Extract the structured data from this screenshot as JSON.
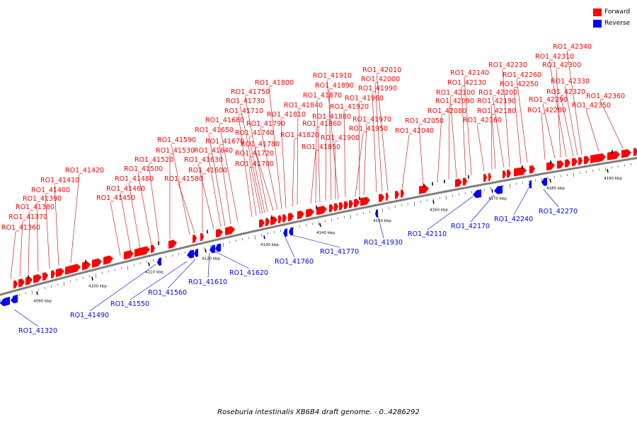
{
  "colors": {
    "forward": "#ff0000",
    "reverse": "#0000ff",
    "backbone": "#7f7f7f",
    "leader_forward": "#cc0000",
    "leader_reverse": "#0000cc"
  },
  "legend": [
    {
      "label": "Forward",
      "color": "#ff0000"
    },
    {
      "label": "Reverse",
      "color": "#0000ff"
    }
  ],
  "caption": "Roseburia intestinalis XB6B4 draft genome. - 0..4286292",
  "scale_labels": [
    "4090 kbp",
    "4100 kbp",
    "4110 kbp",
    "4120 kbp",
    "4130 kbp",
    "4140 kbp",
    "4150 kbp",
    "4160 kbp",
    "4170 kbp",
    "4180 kbp",
    "4190 kbp"
  ],
  "forward_genes": [
    "RO1_41360",
    "RO1_41370",
    "RO1_41380",
    "RO1_41390",
    "RO1_41400",
    "RO1_41410",
    "RO1_41420",
    "RO1_41450",
    "RO1_41460",
    "RO1_41480",
    "RO1_41500",
    "RO1_41520",
    "RO1_41530",
    "RO1_41580",
    "RO1_41590",
    "RO1_41600",
    "RO1_41630",
    "RO1_41640",
    "RO1_41650",
    "RO1_41670",
    "RO1_41680",
    "RO1_41700",
    "RO1_41710",
    "RO1_41720",
    "RO1_41730",
    "RO1_41740",
    "RO1_41750",
    "RO1_41780",
    "RO1_41790",
    "RO1_41800",
    "RO1_41810",
    "RO1_41820",
    "RO1_41840",
    "RO1_41850",
    "RO1_41860",
    "RO1_41870",
    "RO1_41880",
    "RO1_41890",
    "RO1_41900",
    "RO1_41910",
    "RO1_41920",
    "RO1_41950",
    "RO1_41960",
    "RO1_41970",
    "RO1_41990",
    "RO1_42000",
    "RO1_42010",
    "RO1_42040",
    "RO1_42050",
    "RO1_42080",
    "RO1_42090",
    "RO1_42100",
    "RO1_42130",
    "RO1_42140",
    "RO1_42160",
    "RO1_42180",
    "RO1_42190",
    "RO1_42200",
    "RO1_42230",
    "RO1_42250",
    "RO1_42260",
    "RO1_42280",
    "RO1_42290",
    "RO1_42300",
    "RO1_42310",
    "RO1_42320",
    "RO1_42330",
    "RO1_42340",
    "RO1_42350",
    "RO1_42360"
  ],
  "reverse_genes": [
    "RO1_41320",
    "RO1_41490",
    "RO1_41550",
    "RO1_41560",
    "RO1_41610",
    "RO1_41620",
    "RO1_41760",
    "RO1_41770",
    "RO1_41930",
    "RO1_42110",
    "RO1_42170",
    "RO1_42240",
    "RO1_42270"
  ]
}
